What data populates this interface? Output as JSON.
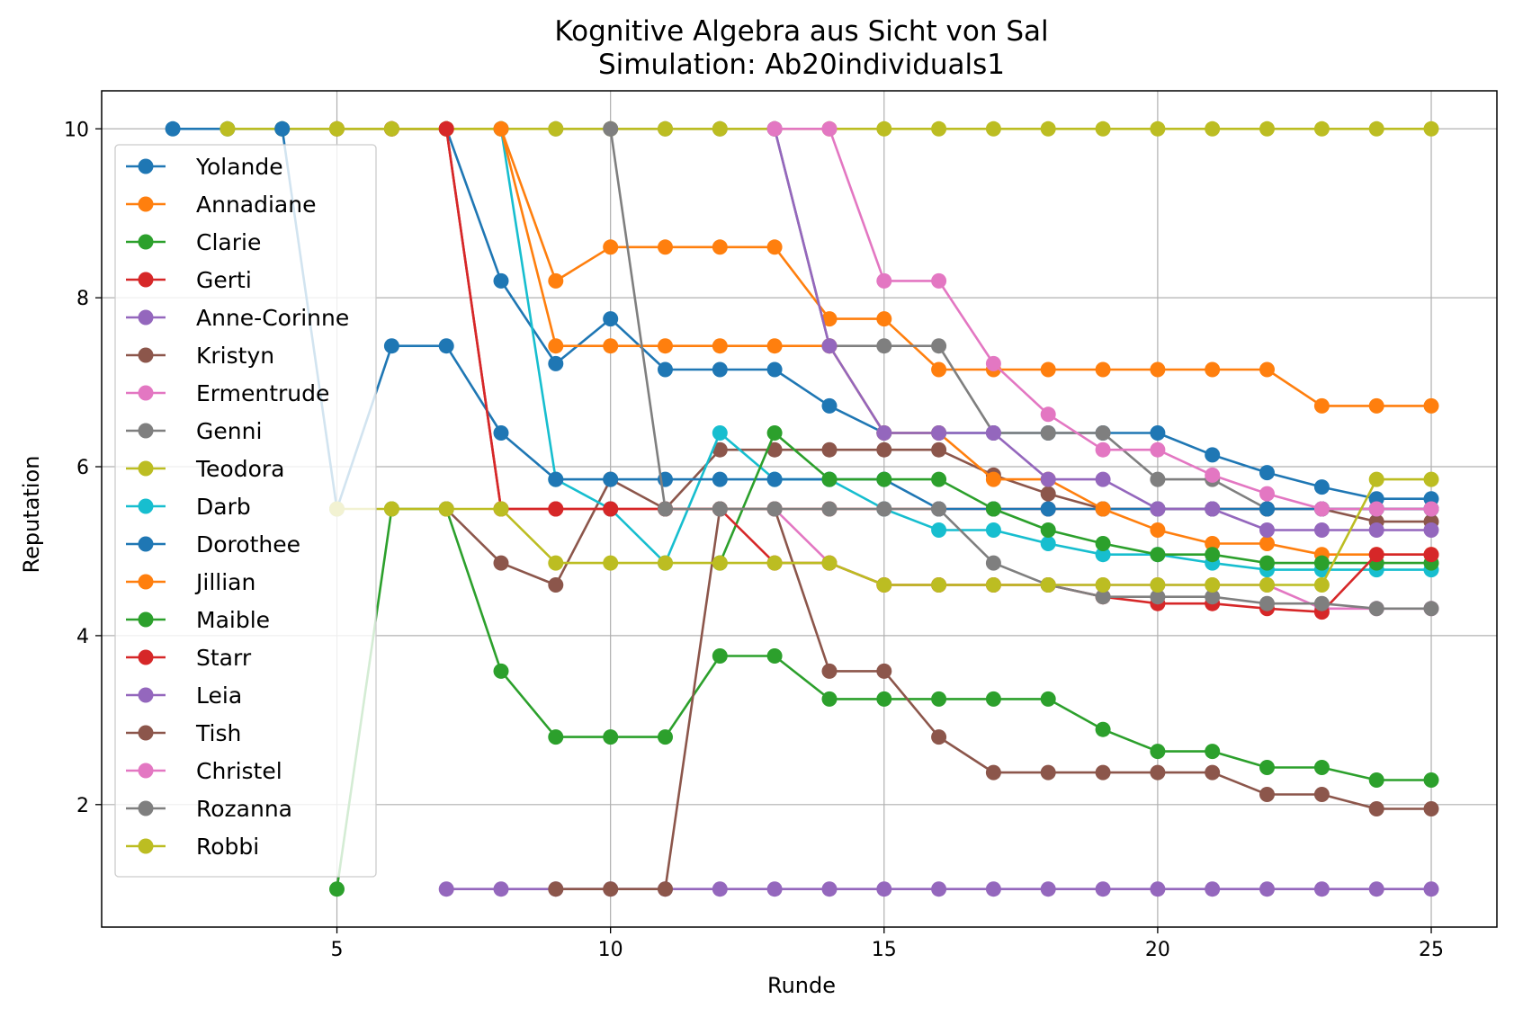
{
  "chart_data": {
    "type": "line",
    "title": "Kognitive Algebra aus Sicht von Sal",
    "subtitle": "Simulation: Ab20individuals1",
    "xlabel": "Runde",
    "ylabel": "Reputation",
    "xlim": [
      0.7,
      26.2
    ],
    "ylim": [
      0.55,
      10.45
    ],
    "xticks": [
      5,
      10,
      15,
      20,
      25
    ],
    "yticks": [
      2,
      4,
      6,
      8,
      10
    ],
    "grid": true,
    "legend_position": "upper-left",
    "series": [
      {
        "name": "Yolande",
        "color": "#1f77b4",
        "x": [
          2,
          3,
          4,
          5,
          6,
          7,
          8,
          9,
          10,
          11,
          12,
          13,
          14,
          15,
          16,
          17,
          18,
          19,
          20,
          21,
          22,
          23,
          24,
          25
        ],
        "y": [
          10,
          10,
          10,
          10,
          10,
          10,
          8.2,
          7.22,
          7.75,
          7.15,
          7.15,
          7.15,
          6.72,
          6.4,
          6.4,
          6.4,
          6.4,
          6.4,
          6.4,
          6.14,
          5.93,
          5.76,
          5.62,
          5.62
        ]
      },
      {
        "name": "Annadiane",
        "color": "#ff7f0e",
        "x": [
          5,
          6,
          7,
          8,
          9,
          10,
          11,
          12,
          13,
          14,
          15,
          16,
          17,
          18,
          19,
          20,
          21,
          22,
          23,
          24,
          25
        ],
        "y": [
          10,
          10,
          10,
          10,
          8.2,
          8.6,
          8.6,
          8.6,
          8.6,
          7.75,
          7.75,
          7.15,
          7.15,
          7.15,
          7.15,
          7.15,
          7.15,
          7.15,
          6.72,
          6.72,
          6.72
        ]
      },
      {
        "name": "Clarie",
        "color": "#2ca02c",
        "x": [
          5,
          6,
          7,
          8,
          9,
          10,
          11,
          12,
          13,
          14,
          15,
          16,
          17,
          18,
          19,
          20,
          21,
          22,
          23,
          24,
          25
        ],
        "y": [
          1.0,
          5.5,
          5.5,
          3.58,
          2.8,
          2.8,
          2.8,
          3.76,
          3.76,
          3.25,
          3.25,
          3.25,
          3.25,
          3.25,
          2.89,
          2.63,
          2.63,
          2.44,
          2.44,
          2.29,
          2.29
        ]
      },
      {
        "name": "Gerti",
        "color": "#d62728",
        "x": [
          6,
          7,
          8,
          9,
          10,
          11,
          12,
          13,
          14,
          15,
          16,
          17,
          18,
          19,
          20,
          21,
          22,
          23,
          24,
          25
        ],
        "y": [
          10,
          10,
          5.5,
          5.5,
          5.5,
          5.5,
          5.5,
          5.5,
          5.5,
          5.5,
          5.5,
          5.5,
          5.5,
          5.5,
          5.5,
          5.5,
          5.5,
          5.5,
          5.5,
          5.5
        ]
      },
      {
        "name": "Anne-Corinne",
        "color": "#9467bd",
        "x": [
          7,
          8,
          9,
          10,
          11,
          12,
          13,
          14,
          15,
          16,
          17,
          18,
          19,
          20,
          21,
          22,
          23,
          24,
          25
        ],
        "y": [
          1.0,
          1.0,
          1.0,
          1.0,
          1.0,
          1.0,
          1.0,
          1.0,
          1.0,
          1.0,
          1.0,
          1.0,
          1.0,
          1.0,
          1.0,
          1.0,
          1.0,
          1.0,
          1.0
        ]
      },
      {
        "name": "Kristyn",
        "color": "#8c564b",
        "x": [
          7,
          8,
          9,
          10,
          11,
          12,
          13,
          14,
          15,
          16,
          17,
          18,
          19,
          20,
          21,
          22,
          23,
          24,
          25
        ],
        "y": [
          5.5,
          4.86,
          4.6,
          5.85,
          5.5,
          6.2,
          6.2,
          6.2,
          6.2,
          6.2,
          5.9,
          5.68,
          5.5,
          5.5,
          5.5,
          5.5,
          5.5,
          5.35,
          5.35
        ]
      },
      {
        "name": "Ermentrude",
        "color": "#e377c2",
        "x": [
          13,
          14,
          15,
          16,
          17,
          18,
          19,
          20,
          21,
          22,
          23,
          24,
          25
        ],
        "y": [
          5.5,
          4.86,
          4.6,
          4.6,
          4.6,
          4.6,
          4.6,
          4.6,
          4.6,
          4.6,
          4.32,
          4.32,
          4.32
        ]
      },
      {
        "name": "Genni",
        "color": "#7f7f7f",
        "x": [
          9,
          10,
          11,
          12,
          13,
          14,
          15,
          16,
          17,
          18,
          19,
          20,
          21,
          22,
          23,
          24,
          25
        ],
        "y": [
          10,
          10,
          10,
          10,
          10,
          7.43,
          7.43,
          7.43,
          6.4,
          6.4,
          6.4,
          5.85,
          5.85,
          5.5,
          5.5,
          5.5,
          5.5
        ]
      },
      {
        "name": "Teodora",
        "color": "#bcbd22",
        "x": [
          3,
          4,
          5,
          6,
          7,
          8,
          9,
          10,
          11,
          12,
          13,
          14,
          15,
          16,
          17,
          18,
          19,
          20,
          21,
          22,
          23,
          24,
          25
        ],
        "y": [
          10,
          10,
          10,
          10,
          10,
          10,
          10,
          10,
          10,
          10,
          10,
          10,
          10,
          10,
          10,
          10,
          10,
          10,
          10,
          10,
          10,
          10,
          10
        ]
      },
      {
        "name": "Darb",
        "color": "#17becf",
        "x": [
          8,
          9,
          10,
          11,
          12,
          13,
          14,
          15,
          16,
          17,
          18,
          19,
          20,
          21,
          22,
          23,
          24,
          25
        ],
        "y": [
          10,
          5.85,
          5.5,
          4.86,
          6.4,
          5.85,
          5.85,
          5.5,
          5.25,
          5.25,
          5.09,
          4.96,
          4.96,
          4.86,
          4.78,
          4.78,
          4.78,
          4.78
        ]
      },
      {
        "name": "Dorothee",
        "color": "#1f77b4",
        "x": [
          4,
          5,
          6,
          7,
          8,
          9,
          10,
          11,
          12,
          13,
          14,
          15,
          16,
          17,
          18,
          19,
          20,
          21,
          22,
          23,
          24,
          25
        ],
        "y": [
          10,
          5.5,
          7.43,
          7.43,
          6.4,
          5.85,
          5.85,
          5.85,
          5.85,
          5.85,
          5.85,
          5.85,
          5.5,
          5.5,
          5.5,
          5.5,
          5.5,
          5.5,
          5.5,
          5.5,
          5.5,
          5.5
        ]
      },
      {
        "name": "Jillian",
        "color": "#ff7f0e",
        "x": [
          8,
          9,
          10,
          11,
          12,
          13,
          14,
          15,
          16,
          17,
          18,
          19,
          20,
          21,
          22,
          23,
          24,
          25
        ],
        "y": [
          10,
          7.43,
          7.43,
          7.43,
          7.43,
          7.43,
          7.43,
          6.4,
          6.4,
          5.85,
          5.85,
          5.5,
          5.25,
          5.09,
          5.09,
          4.96,
          4.96,
          4.96
        ]
      },
      {
        "name": "Maible",
        "color": "#2ca02c",
        "x": [
          12,
          13,
          14,
          15,
          16,
          17,
          18,
          19,
          20,
          21,
          22,
          23,
          24,
          25
        ],
        "y": [
          4.86,
          6.4,
          5.85,
          5.85,
          5.85,
          5.5,
          5.25,
          5.09,
          4.96,
          4.96,
          4.86,
          4.86,
          4.86,
          4.86
        ]
      },
      {
        "name": "Starr",
        "color": "#d62728",
        "x": [
          7,
          8,
          9,
          10,
          11,
          12,
          13,
          14,
          15,
          16,
          17,
          18,
          19,
          20,
          21,
          22,
          23,
          24,
          25
        ],
        "y": [
          10,
          5.5,
          5.5,
          5.5,
          5.5,
          5.5,
          4.86,
          4.86,
          4.6,
          4.6,
          4.6,
          4.6,
          4.46,
          4.38,
          4.38,
          4.32,
          4.28,
          4.96,
          4.96
        ]
      },
      {
        "name": "Leia",
        "color": "#9467bd",
        "x": [
          13,
          14,
          15,
          16,
          17,
          18,
          19,
          20,
          21,
          22,
          23,
          24,
          25
        ],
        "y": [
          10,
          7.43,
          6.4,
          6.4,
          6.4,
          5.85,
          5.85,
          5.5,
          5.5,
          5.25,
          5.25,
          5.25,
          5.25
        ]
      },
      {
        "name": "Tish",
        "color": "#8c564b",
        "x": [
          9,
          10,
          11,
          12,
          13,
          14,
          15,
          16,
          17,
          18,
          19,
          20,
          21,
          22,
          23,
          24,
          25
        ],
        "y": [
          1.0,
          1.0,
          1.0,
          5.5,
          5.5,
          3.58,
          3.58,
          2.8,
          2.38,
          2.38,
          2.38,
          2.38,
          2.38,
          2.12,
          2.12,
          1.95,
          1.95
        ]
      },
      {
        "name": "Christel",
        "color": "#e377c2",
        "x": [
          13,
          14,
          15,
          16,
          17,
          18,
          19,
          20,
          21,
          22,
          23,
          24,
          25
        ],
        "y": [
          10,
          10,
          8.2,
          8.2,
          7.22,
          6.62,
          6.2,
          6.2,
          5.9,
          5.68,
          5.5,
          5.5,
          5.5
        ]
      },
      {
        "name": "Rozanna",
        "color": "#7f7f7f",
        "x": [
          10,
          11,
          12,
          13,
          14,
          15,
          16,
          17,
          18,
          19,
          20,
          21,
          22,
          23,
          24,
          25
        ],
        "y": [
          10,
          5.5,
          5.5,
          5.5,
          5.5,
          5.5,
          5.5,
          4.86,
          4.6,
          4.46,
          4.46,
          4.46,
          4.38,
          4.38,
          4.32,
          4.32
        ]
      },
      {
        "name": "Robbi",
        "color": "#bcbd22",
        "x": [
          5,
          6,
          7,
          8,
          9,
          10,
          11,
          12,
          13,
          14,
          15,
          16,
          17,
          18,
          19,
          20,
          21,
          22,
          23,
          24,
          25
        ],
        "y": [
          5.5,
          5.5,
          5.5,
          5.5,
          4.86,
          4.86,
          4.86,
          4.86,
          4.86,
          4.86,
          4.6,
          4.6,
          4.6,
          4.6,
          4.6,
          4.6,
          4.6,
          4.6,
          4.6,
          5.85,
          5.85
        ]
      }
    ]
  }
}
